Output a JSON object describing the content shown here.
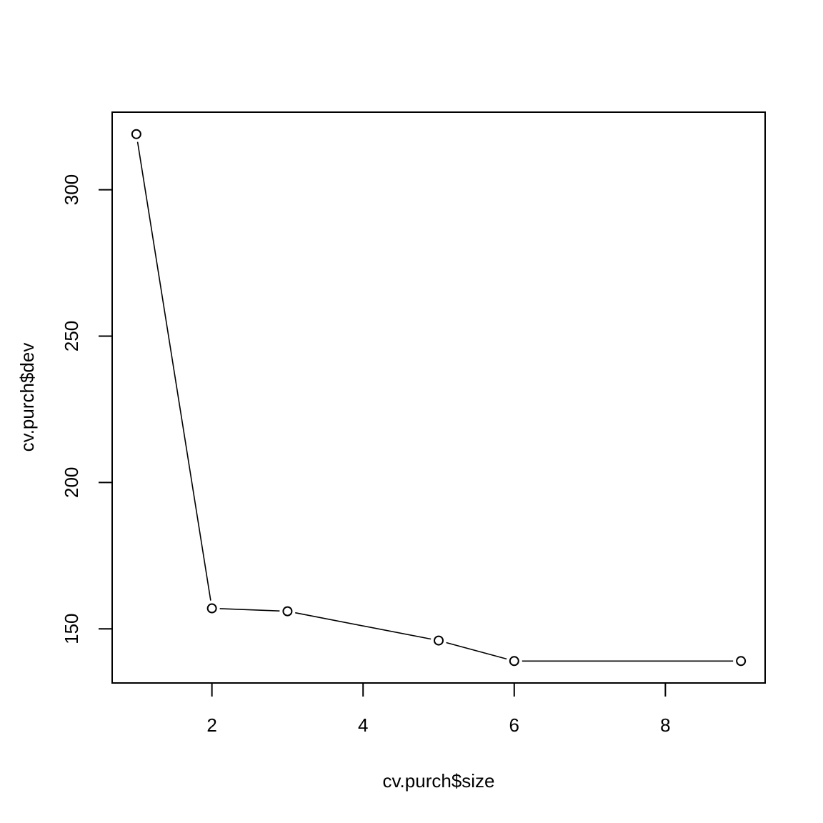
{
  "chart_data": {
    "type": "line",
    "xlabel": "cv.purch$size",
    "ylabel": "cv.purch$dev",
    "x": [
      1,
      2,
      3,
      5,
      6,
      9
    ],
    "y": [
      319,
      157,
      156,
      146,
      139,
      139
    ],
    "xlim": [
      0.68,
      9.32
    ],
    "ylim": [
      131.5,
      326.5
    ],
    "xticks": [
      2,
      4,
      6,
      8
    ],
    "yticks": [
      150,
      200,
      250,
      300
    ],
    "point_style": "open-circle",
    "line_style": "solid-with-gaps",
    "grid": false,
    "legend": "none"
  }
}
